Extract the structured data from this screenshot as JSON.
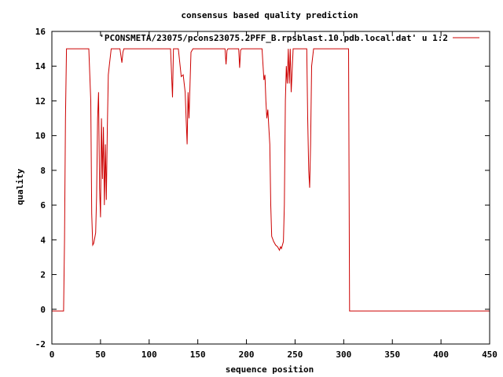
{
  "chart_data": {
    "type": "line",
    "title": "consensus based quality prediction",
    "xlabel": "sequence position",
    "ylabel": "quality",
    "xlim": [
      0,
      450
    ],
    "ylim": [
      -2,
      16
    ],
    "xticks": [
      0,
      50,
      100,
      150,
      200,
      250,
      300,
      350,
      400,
      450
    ],
    "yticks": [
      -2,
      0,
      2,
      4,
      6,
      8,
      10,
      12,
      14,
      16
    ],
    "grid": false,
    "legend_position": "top-right",
    "series": [
      {
        "name": "'PCONSMETA/23075/pcons23075.2PFF_B.rpsblast.10.pdb.local.dat' u 1:2",
        "color": "#cc0000",
        "x": [
          0,
          12,
          13,
          14,
          15,
          38,
          40,
          41,
          42,
          43,
          44,
          45,
          46,
          47,
          48,
          49,
          50,
          51,
          52,
          53,
          54,
          55,
          56,
          57,
          58,
          59,
          61,
          70,
          72,
          73,
          74,
          75,
          122,
          124,
          125,
          126,
          127,
          128,
          130,
          133,
          135,
          137,
          138,
          139,
          140,
          141,
          142,
          143,
          145,
          178,
          179,
          180,
          181,
          192,
          193,
          194,
          195,
          216,
          218,
          219,
          220,
          221,
          222,
          223,
          224,
          225,
          226,
          228,
          230,
          232,
          234,
          235,
          236,
          238,
          239,
          240,
          241,
          242,
          243,
          244,
          245,
          246,
          248,
          262,
          263,
          264,
          265,
          266,
          267,
          269,
          305,
          306,
          450
        ],
        "y": [
          -0.1,
          -0.1,
          4.0,
          11.0,
          15.0,
          15.0,
          12.0,
          5.5,
          3.7,
          3.8,
          4.1,
          4.4,
          6.5,
          11.0,
          12.5,
          7.0,
          5.3,
          11.0,
          7.5,
          10.5,
          6.0,
          9.5,
          6.3,
          10.5,
          13.5,
          14.0,
          15.0,
          15.0,
          14.2,
          14.8,
          15.0,
          15.0,
          15.0,
          12.2,
          15.0,
          15.0,
          15.0,
          15.0,
          15.0,
          13.4,
          13.5,
          12.5,
          11.0,
          9.5,
          12.5,
          11.0,
          13.0,
          14.8,
          15.0,
          15.0,
          14.1,
          14.9,
          15.0,
          15.0,
          13.9,
          14.9,
          15.0,
          15.0,
          13.2,
          13.5,
          12.0,
          11.0,
          11.5,
          10.5,
          9.5,
          6.0,
          4.2,
          3.9,
          3.7,
          3.6,
          3.4,
          3.6,
          3.5,
          3.9,
          6.0,
          12.0,
          14.0,
          13.0,
          15.0,
          13.0,
          15.0,
          12.5,
          15.0,
          15.0,
          11.0,
          8.0,
          7.0,
          9.5,
          14.0,
          15.0,
          15.0,
          -0.1,
          -0.1
        ]
      }
    ]
  }
}
